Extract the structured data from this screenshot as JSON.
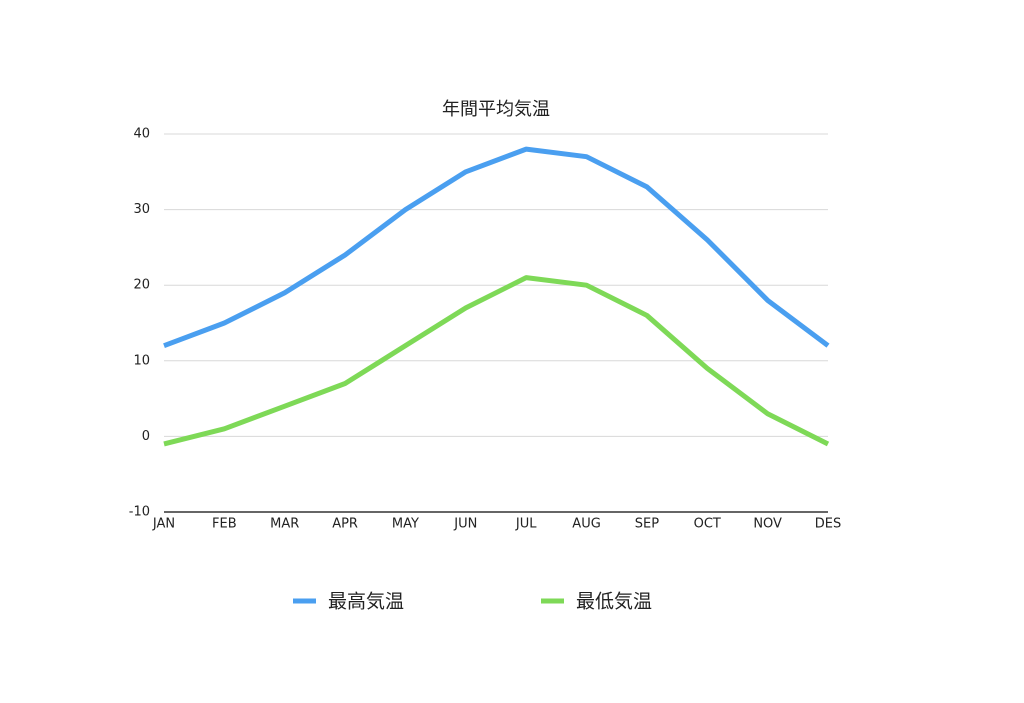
{
  "chart_data": {
    "type": "line",
    "title": "年間平均気温",
    "categories": [
      "JAN",
      "FEB",
      "MAR",
      "APR",
      "MAY",
      "JUN",
      "JUL",
      "AUG",
      "SEP",
      "OCT",
      "NOV",
      "DES"
    ],
    "series": [
      {
        "name": "最高気温",
        "color": "#4a9ff0",
        "values": [
          12,
          15,
          19,
          24,
          30,
          35,
          38,
          37,
          33,
          26,
          18,
          12
        ]
      },
      {
        "name": "最低気温",
        "color": "#7ed957",
        "values": [
          -1,
          1,
          4,
          7,
          12,
          17,
          21,
          20,
          16,
          9,
          3,
          -1
        ]
      }
    ],
    "ylim": [
      -10,
      40
    ],
    "yticks": [
      -10,
      0,
      10,
      20,
      30,
      40
    ],
    "grid": true
  }
}
